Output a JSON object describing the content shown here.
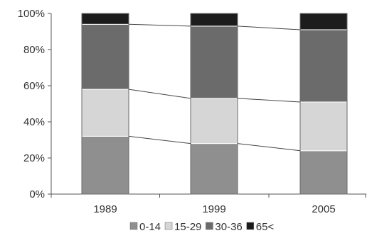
{
  "chart_data": {
    "type": "bar",
    "stacked": true,
    "percent": true,
    "categories": [
      "1989",
      "1999",
      "2005"
    ],
    "series": [
      {
        "name": "0-14",
        "values": [
          32,
          28,
          24
        ],
        "color": "#8f8f8f"
      },
      {
        "name": "15-29",
        "values": [
          26,
          25,
          27
        ],
        "color": "#d6d6d6"
      },
      {
        "name": "30-36",
        "values": [
          36,
          40,
          40
        ],
        "color": "#6b6b6b"
      },
      {
        "name": "65<",
        "values": [
          6,
          7,
          9
        ],
        "color": "#1c1c1c"
      }
    ],
    "yticks": [
      "0%",
      "20%",
      "40%",
      "60%",
      "80%",
      "100%"
    ],
    "ylim": [
      0,
      100
    ],
    "connector_lines": true,
    "legend_position": "bottom"
  }
}
